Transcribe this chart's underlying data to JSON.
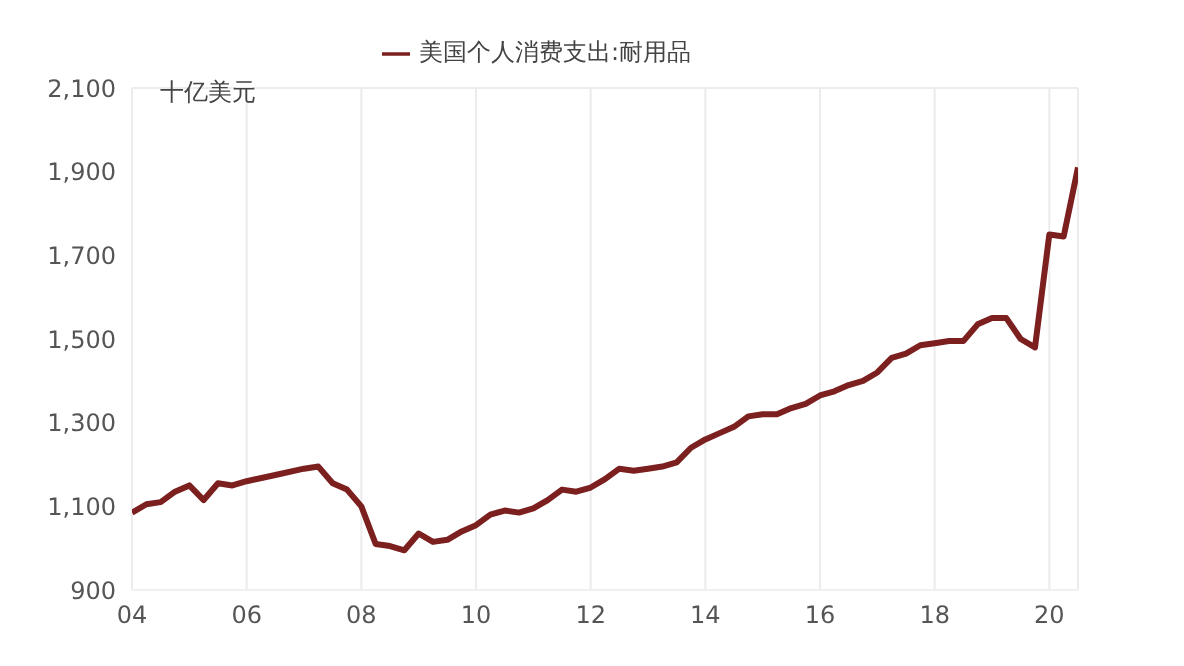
{
  "chart_data": {
    "type": "line",
    "legend": "top",
    "grid": true,
    "marker": "none",
    "line_style": "solid",
    "annotations": [
      "十亿美元"
    ],
    "x": [
      2004,
      2004.25,
      2004.5,
      2004.75,
      2005,
      2005.25,
      2005.5,
      2005.75,
      2006,
      2006.5,
      2007,
      2007.25,
      2007.5,
      2007.75,
      2008,
      2008.25,
      2008.5,
      2008.75,
      2009,
      2009.25,
      2009.5,
      2009.75,
      2010,
      2010.25,
      2010.5,
      2010.75,
      2011,
      2011.25,
      2011.5,
      2011.75,
      2012,
      2012.25,
      2012.5,
      2012.75,
      2013,
      2013.25,
      2013.5,
      2013.75,
      2014,
      2014.25,
      2014.5,
      2014.75,
      2015,
      2015.25,
      2015.5,
      2015.75,
      2016,
      2016.25,
      2016.5,
      2016.75,
      2017,
      2017.25,
      2017.5,
      2017.75,
      2018,
      2018.25,
      2018.5,
      2018.75,
      2019,
      2019.25,
      2019.5,
      2019.75,
      2020,
      2020.25,
      2020.5
    ],
    "series": [
      {
        "name": "美国个人消费支出:耐用品",
        "color": "#7b1f1f",
        "values": [
          1085,
          1105,
          1110,
          1135,
          1150,
          1115,
          1155,
          1150,
          1160,
          1175,
          1190,
          1195,
          1155,
          1140,
          1100,
          1010,
          1005,
          995,
          1035,
          1015,
          1020,
          1040,
          1055,
          1080,
          1090,
          1085,
          1095,
          1115,
          1140,
          1135,
          1145,
          1165,
          1190,
          1185,
          1190,
          1195,
          1205,
          1240,
          1260,
          1275,
          1290,
          1315,
          1320,
          1320,
          1335,
          1345,
          1365,
          1375,
          1390,
          1400,
          1420,
          1455,
          1465,
          1485,
          1490,
          1495,
          1495,
          1535,
          1550,
          1550,
          1500,
          1480,
          1750,
          1745,
          1910
        ]
      }
    ],
    "xlim": [
      2004,
      2020.5
    ],
    "xticks": [
      {
        "value": 2004,
        "label": "04"
      },
      {
        "value": 2006,
        "label": "06"
      },
      {
        "value": 2008,
        "label": "08"
      },
      {
        "value": 2010,
        "label": "10"
      },
      {
        "value": 2012,
        "label": "12"
      },
      {
        "value": 2014,
        "label": "14"
      },
      {
        "value": 2016,
        "label": "16"
      },
      {
        "value": 2018,
        "label": "18"
      },
      {
        "value": 2020,
        "label": "20"
      }
    ],
    "ylim": [
      900,
      2100
    ],
    "yticks": [
      {
        "value": 900,
        "label": "900"
      },
      {
        "value": 1100,
        "label": "1,100"
      },
      {
        "value": 1300,
        "label": "1,300"
      },
      {
        "value": 1500,
        "label": "1,500"
      },
      {
        "value": 1700,
        "label": "1,700"
      },
      {
        "value": 1900,
        "label": "1,900"
      },
      {
        "value": 2100,
        "label": "2,100"
      }
    ]
  }
}
